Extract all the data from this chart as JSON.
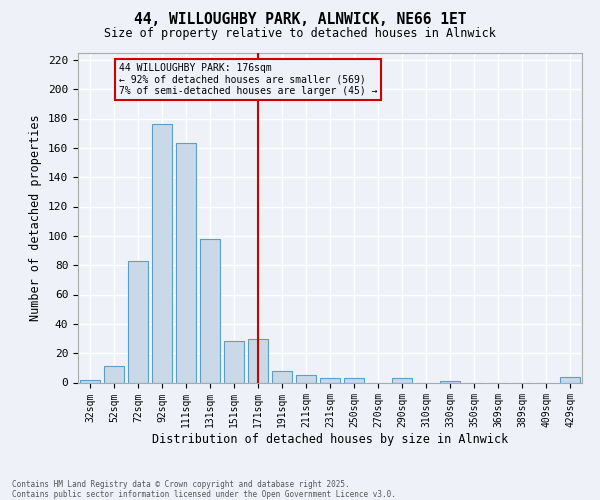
{
  "title_line1": "44, WILLOUGHBY PARK, ALNWICK, NE66 1ET",
  "title_line2": "Size of property relative to detached houses in Alnwick",
  "xlabel": "Distribution of detached houses by size in Alnwick",
  "ylabel": "Number of detached properties",
  "categories": [
    "32sqm",
    "52sqm",
    "72sqm",
    "92sqm",
    "111sqm",
    "131sqm",
    "151sqm",
    "171sqm",
    "191sqm",
    "211sqm",
    "231sqm",
    "250sqm",
    "270sqm",
    "290sqm",
    "310sqm",
    "330sqm",
    "350sqm",
    "369sqm",
    "389sqm",
    "409sqm",
    "429sqm"
  ],
  "values": [
    2,
    11,
    83,
    176,
    163,
    98,
    28,
    30,
    8,
    5,
    3,
    3,
    0,
    3,
    0,
    1,
    0,
    0,
    0,
    0,
    4
  ],
  "bar_color": "#c9d9e8",
  "bar_edge_color": "#5a9fc8",
  "vline_x_index": 7,
  "vline_color": "#cc0000",
  "annotation_title": "44 WILLOUGHBY PARK: 176sqm",
  "annotation_line1": "← 92% of detached houses are smaller (569)",
  "annotation_line2": "7% of semi-detached houses are larger (45) →",
  "annotation_box_edge_color": "#cc0000",
  "ylim": [
    0,
    225
  ],
  "yticks": [
    0,
    20,
    40,
    60,
    80,
    100,
    120,
    140,
    160,
    180,
    200,
    220
  ],
  "background_color": "#eef2f8",
  "grid_color": "#ffffff",
  "footer_line1": "Contains HM Land Registry data © Crown copyright and database right 2025.",
  "footer_line2": "Contains public sector information licensed under the Open Government Licence v3.0."
}
